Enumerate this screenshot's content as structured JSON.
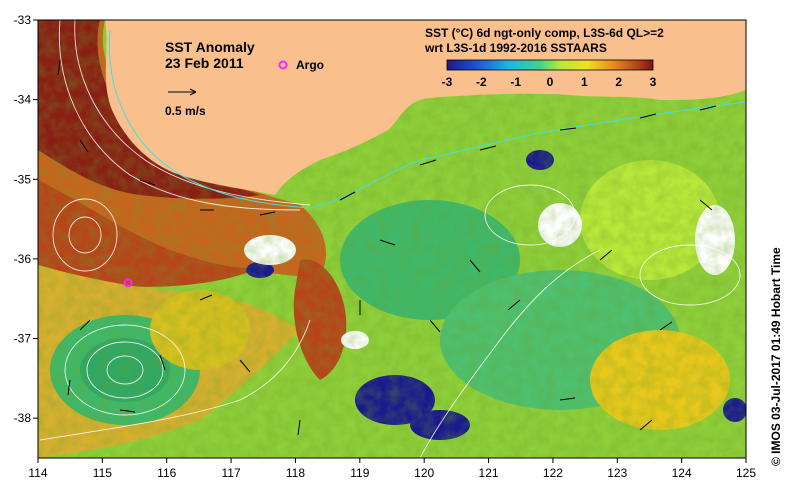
{
  "title": {
    "line1": "SST Anomaly",
    "line2": "23 Feb 2011"
  },
  "scale_arrow_label": "0.5 m/s",
  "argo_label": "Argo",
  "product": {
    "line1": "SST (°C) 6d ngt-only comp, L3S-6d QL>=2",
    "line2": "wrt L3S-1d 1992-2016 SSTAARS"
  },
  "colorbar": {
    "ticks": [
      "-3",
      "-2",
      "-1",
      "0",
      "1",
      "2",
      "3"
    ],
    "range": [
      -3,
      3
    ],
    "colors": [
      "#1a1a8c",
      "#1f4fd6",
      "#18b8e8",
      "#3fd38a",
      "#b8e83a",
      "#f2e21c",
      "#e8901e",
      "#b8441a",
      "#7a1512"
    ]
  },
  "axes": {
    "x_ticks": [
      "114",
      "115",
      "116",
      "117",
      "118",
      "119",
      "120",
      "121",
      "122",
      "123",
      "124",
      "125"
    ],
    "y_ticks": [
      "-33",
      "-34",
      "-35",
      "-36",
      "-37",
      "-38"
    ],
    "x_range": [
      114,
      125
    ],
    "y_range": [
      -38.5,
      -33
    ]
  },
  "credit": "© IMOS 03-Jul-2017 01:49 Hobart Time",
  "colors": {
    "land": "#f9c08e",
    "missing": "#ffffff",
    "argo": "#ff22ff",
    "contour": "#ffffff",
    "cyan_contour": "#40e0e0"
  },
  "argo_position": {
    "lon": 115.4,
    "lat": -36.3
  }
}
